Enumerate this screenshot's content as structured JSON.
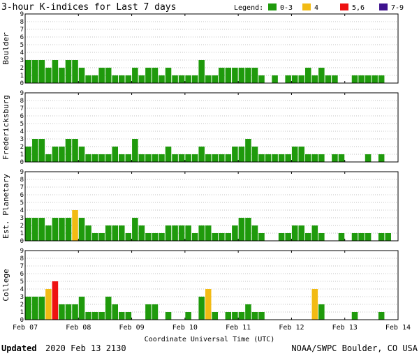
{
  "title": "3-hour K-indices for Last 7 days",
  "legend": {
    "label": "Legend:",
    "items": [
      {
        "label": "0-3",
        "color": "#1f9a0c"
      },
      {
        "label": "4",
        "color": "#f2bb14"
      },
      {
        "label": "5,6",
        "color": "#ee1111"
      },
      {
        "label": "7-9",
        "color": "#3e128e"
      }
    ]
  },
  "xlabel": "Coordinate Universal Time (UTC)",
  "footer": {
    "updated_label": "Updated",
    "updated_value": "2020 Feb 13 2130",
    "credit": "NOAA/SWPC Boulder, CO USA"
  },
  "chart_data": [
    {
      "type": "bar",
      "name": "Boulder",
      "ylim": [
        0,
        9
      ],
      "yticks": [
        "0",
        "1",
        "2",
        "3",
        "4",
        "5",
        "6",
        "7",
        "8",
        "9"
      ],
      "xticks": [
        "Feb 07",
        "Feb 08",
        "Feb 09",
        "Feb 10",
        "Feb 11",
        "Feb 12",
        "Feb 13",
        "Feb 14"
      ],
      "values": [
        3,
        3,
        3,
        2,
        3,
        2,
        3,
        3,
        2,
        1,
        1,
        2,
        2,
        1,
        1,
        1,
        2,
        1,
        2,
        2,
        1,
        2,
        1,
        1,
        1,
        1,
        3,
        1,
        1,
        2,
        2,
        2,
        2,
        2,
        2,
        1,
        0,
        1,
        0,
        1,
        1,
        1,
        2,
        1,
        2,
        1,
        1,
        0,
        0,
        1,
        1,
        1,
        1,
        1,
        0
      ]
    },
    {
      "type": "bar",
      "name": "Fredericksburg",
      "ylim": [
        0,
        9
      ],
      "yticks": [
        "0",
        "1",
        "2",
        "3",
        "4",
        "5",
        "6",
        "7",
        "8",
        "9"
      ],
      "xticks": [
        "Feb 07",
        "Feb 08",
        "Feb 09",
        "Feb 10",
        "Feb 11",
        "Feb 12",
        "Feb 13",
        "Feb 14"
      ],
      "values": [
        2,
        3,
        3,
        1,
        2,
        2,
        3,
        3,
        2,
        1,
        1,
        1,
        1,
        2,
        1,
        1,
        3,
        1,
        1,
        1,
        1,
        2,
        1,
        1,
        1,
        1,
        2,
        1,
        1,
        1,
        1,
        2,
        2,
        3,
        2,
        1,
        1,
        1,
        1,
        1,
        2,
        2,
        1,
        1,
        1,
        0,
        1,
        1,
        0,
        0,
        0,
        1,
        0,
        1,
        0
      ]
    },
    {
      "type": "bar",
      "name": "Est. Planetary",
      "ylim": [
        0,
        9
      ],
      "yticks": [
        "0",
        "1",
        "2",
        "3",
        "4",
        "5",
        "6",
        "7",
        "8",
        "9"
      ],
      "xticks": [
        "Feb 07",
        "Feb 08",
        "Feb 09",
        "Feb 10",
        "Feb 11",
        "Feb 12",
        "Feb 13",
        "Feb 14"
      ],
      "values": [
        3,
        3,
        3,
        2,
        3,
        3,
        3,
        4,
        3,
        2,
        1,
        1,
        2,
        2,
        2,
        1,
        3,
        2,
        1,
        1,
        1,
        2,
        2,
        2,
        2,
        1,
        2,
        2,
        1,
        1,
        1,
        2,
        3,
        3,
        2,
        1,
        0,
        0,
        1,
        1,
        2,
        2,
        1,
        2,
        1,
        0,
        0,
        1,
        0,
        1,
        1,
        1,
        0,
        1,
        1
      ]
    },
    {
      "type": "bar",
      "name": "College",
      "ylim": [
        0,
        9
      ],
      "yticks": [
        "0",
        "1",
        "2",
        "3",
        "4",
        "5",
        "6",
        "7",
        "8",
        "9"
      ],
      "xticks": [
        "Feb 07",
        "Feb 08",
        "Feb 09",
        "Feb 10",
        "Feb 11",
        "Feb 12",
        "Feb 13",
        "Feb 14"
      ],
      "values": [
        3,
        3,
        3,
        4,
        5,
        2,
        2,
        2,
        3,
        1,
        1,
        1,
        3,
        2,
        1,
        1,
        0,
        0,
        2,
        2,
        0,
        1,
        0,
        0,
        1,
        0,
        3,
        4,
        1,
        0,
        1,
        1,
        1,
        2,
        1,
        1,
        0,
        0,
        0,
        0,
        0,
        0,
        0,
        4,
        2,
        0,
        0,
        0,
        0,
        1,
        0,
        0,
        0,
        1,
        0
      ]
    }
  ]
}
